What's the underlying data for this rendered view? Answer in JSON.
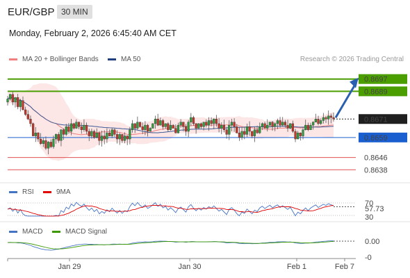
{
  "header": {
    "pair": "EUR/GBP",
    "timeframe": "30 MIN",
    "datetime": "Monday, February 2, 2026 6:45:40 AM CET"
  },
  "legend": {
    "main": [
      {
        "label": "MA 20 + Bollinger Bands",
        "color": "#f08080"
      },
      {
        "label": "MA 50",
        "color": "#1f3f80"
      }
    ],
    "rsi": [
      {
        "label": "RSI",
        "color": "#4472c4"
      },
      {
        "label": "9MA",
        "color": "#e00000"
      }
    ],
    "macd": [
      {
        "label": "MACD",
        "color": "#4472c4"
      },
      {
        "label": "MACD Signal",
        "color": "#3c9a00"
      }
    ],
    "credit": "Research © 2026 Trading Central"
  },
  "chart_data": {
    "type": "candlestick",
    "ylim": [
      0.863,
      0.8705
    ],
    "x_ticks": [
      "Jan 29",
      "Jan 30",
      "Feb 1",
      "Feb 7"
    ],
    "price_levels": [
      {
        "label": "0.8697",
        "value": 0.8697,
        "kind": "resistance",
        "color": "#4a9e00"
      },
      {
        "label": "0.8689",
        "value": 0.8689,
        "kind": "resistance",
        "color": "#4a9e00"
      },
      {
        "label": "0.8671",
        "value": 0.8671,
        "kind": "current",
        "color": "#222222"
      },
      {
        "label": "0.8659",
        "value": 0.8659,
        "kind": "pivot",
        "color": "#1a5fd0"
      },
      {
        "label": "0.8646",
        "value": 0.8646,
        "kind": "support",
        "color": "#e05050"
      },
      {
        "label": "0.8638",
        "value": 0.8638,
        "kind": "support",
        "color": "#e05050"
      }
    ],
    "closes": [
      0.8684,
      0.8687,
      0.8682,
      0.8685,
      0.8679,
      0.8683,
      0.8677,
      0.8674,
      0.8671,
      0.8668,
      0.866,
      0.8662,
      0.8658,
      0.8655,
      0.8657,
      0.8652,
      0.8656,
      0.8653,
      0.8658,
      0.8661,
      0.8657,
      0.8664,
      0.8661,
      0.8666,
      0.8663,
      0.8668,
      0.8665,
      0.8669,
      0.8666,
      0.8664,
      0.8667,
      0.8663,
      0.866,
      0.8663,
      0.8659,
      0.8662,
      0.8657,
      0.866,
      0.8658,
      0.8662,
      0.866,
      0.8664,
      0.8661,
      0.8658,
      0.8661,
      0.8657,
      0.866,
      0.8658,
      0.8664,
      0.8668,
      0.8665,
      0.8669,
      0.8666,
      0.8664,
      0.8667,
      0.8663,
      0.8665,
      0.8668,
      0.8671,
      0.8667,
      0.867,
      0.8666,
      0.8668,
      0.8664,
      0.8667,
      0.8665,
      0.8662,
      0.8667,
      0.8669,
      0.8666,
      0.8663,
      0.8669,
      0.8672,
      0.8668,
      0.8665,
      0.8668,
      0.8666,
      0.8669,
      0.8667,
      0.867,
      0.8668,
      0.8671,
      0.8668,
      0.8665,
      0.8667,
      0.8664,
      0.8661,
      0.8667,
      0.8669,
      0.8666,
      0.8662,
      0.8659,
      0.8663,
      0.8661,
      0.8666,
      0.8663,
      0.866,
      0.8664,
      0.8662,
      0.8666,
      0.8668,
      0.8665,
      0.8667,
      0.8669,
      0.8666,
      0.8668,
      0.867,
      0.8667,
      0.8669,
      0.8667,
      0.8665,
      0.8668,
      0.8663,
      0.8658,
      0.8662,
      0.866,
      0.8664,
      0.8667,
      0.8664,
      0.8667,
      0.8669,
      0.8671,
      0.8668,
      0.867,
      0.8672,
      0.8671,
      0.8673,
      0.8672,
      0.8671
    ],
    "projection": {
      "from": 0.8671,
      "to": 0.8697,
      "color": "#2a5fb0"
    },
    "rsi": {
      "value": "57.73",
      "levels": [
        "70",
        "30"
      ],
      "ylim": [
        30,
        70
      ]
    },
    "macd": {
      "value": "0.00",
      "zero_label": "-0"
    }
  }
}
